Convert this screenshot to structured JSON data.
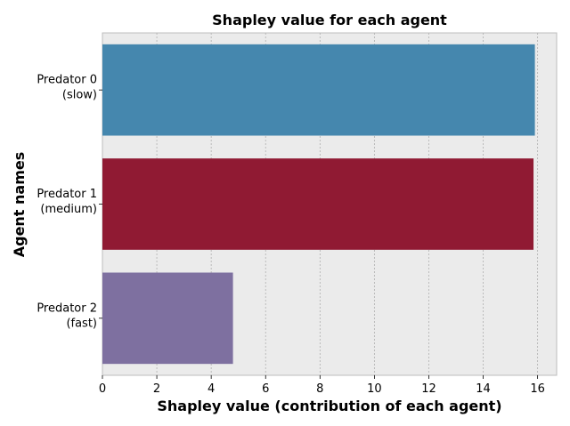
{
  "chart_data": {
    "type": "bar",
    "orientation": "horizontal",
    "title": "Shapley value for each agent",
    "xlabel": "Shapley value (contribution of each agent)",
    "ylabel": "Agent names",
    "categories": [
      [
        "Predator 0",
        "(slow)"
      ],
      [
        "Predator 1",
        "(medium)"
      ],
      [
        "Predator 2",
        "(fast)"
      ]
    ],
    "values": [
      15.9,
      15.85,
      4.8
    ],
    "colors": [
      "#4587ae",
      "#901a33",
      "#7e70a0"
    ],
    "xlim": [
      0,
      16.7
    ],
    "xticks": [
      0,
      2,
      4,
      6,
      8,
      10,
      12,
      14,
      16
    ],
    "grid": true,
    "background": "#ebebeb"
  }
}
